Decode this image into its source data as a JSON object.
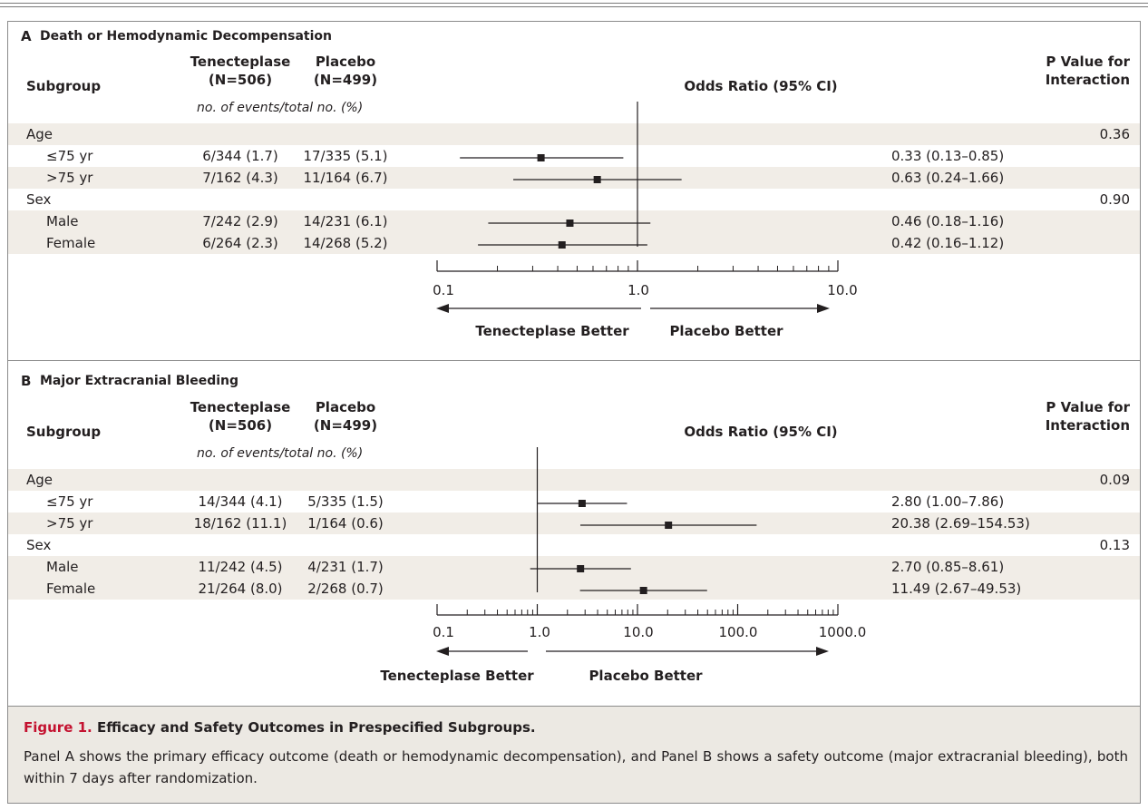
{
  "headers": {
    "subgroup": "Subgroup",
    "tnk_line1": "Tenecteplase",
    "tnk_line2": "(N=506)",
    "pbo_line1": "Placebo",
    "pbo_line2": "(N=499)",
    "or": "Odds Ratio (95% CI)",
    "p_line1": "P Value for",
    "p_line2": "Interaction",
    "units": "no. of events/total no. (%)"
  },
  "panels": [
    {
      "letter": "A",
      "title": "Death or Hemodynamic Decompensation",
      "rows": [
        {
          "kind": "group",
          "label": "Age",
          "p": "0.36"
        },
        {
          "kind": "sub",
          "label": "≤75 yr",
          "tnk": "6/344 (1.7)",
          "pbo": "17/335 (5.1)",
          "ci_text": "0.33 (0.13–0.85)"
        },
        {
          "kind": "sub",
          "label": ">75 yr",
          "tnk": "7/162 (4.3)",
          "pbo": "11/164 (6.7)",
          "ci_text": "0.63 (0.24–1.66)"
        },
        {
          "kind": "group",
          "label": "Sex",
          "p": "0.90"
        },
        {
          "kind": "sub",
          "label": "Male",
          "tnk": "7/242 (2.9)",
          "pbo": "14/231 (6.1)",
          "ci_text": "0.46 (0.18–1.16)"
        },
        {
          "kind": "sub",
          "label": "Female",
          "tnk": "6/264 (2.3)",
          "pbo": "14/268 (5.2)",
          "ci_text": "0.42 (0.16–1.12)"
        }
      ],
      "tick_labels": [
        "0.1",
        "1.0",
        "10.0"
      ],
      "arrow_left": "Tenecteplase Better",
      "arrow_right": "Placebo Better"
    },
    {
      "letter": "B",
      "title": "Major Extracranial Bleeding",
      "rows": [
        {
          "kind": "group",
          "label": "Age",
          "p": "0.09"
        },
        {
          "kind": "sub",
          "label": "≤75 yr",
          "tnk": "14/344 (4.1)",
          "pbo": "5/335 (1.5)",
          "ci_text": "2.80 (1.00–7.86)"
        },
        {
          "kind": "sub",
          "label": ">75 yr",
          "tnk": "18/162 (11.1)",
          "pbo": "1/164 (0.6)",
          "ci_text": "20.38 (2.69–154.53)"
        },
        {
          "kind": "group",
          "label": "Sex",
          "p": "0.13"
        },
        {
          "kind": "sub",
          "label": "Male",
          "tnk": "11/242 (4.5)",
          "pbo": "4/231 (1.7)",
          "ci_text": "2.70 (0.85–8.61)"
        },
        {
          "kind": "sub",
          "label": "Female",
          "tnk": "21/264 (8.0)",
          "pbo": "2/268 (0.7)",
          "ci_text": "11.49 (2.67–49.53)"
        }
      ],
      "tick_labels": [
        "0.1",
        "1.0",
        "10.0",
        "100.0",
        "1000.0"
      ],
      "arrow_left": "Tenecteplase Better",
      "arrow_right": "Placebo Better"
    }
  ],
  "caption": {
    "figure_label": "Figure 1.",
    "title": "Efficacy and Safety Outcomes in Prespecified Subgroups.",
    "text": "Panel A shows the primary efficacy outcome (death or hemodynamic decompensation), and Panel B shows a safety outcome (major extracranial bleeding), both within 7 days after randomization."
  },
  "colors": {
    "row_band": "#f1ede7",
    "caption_bg": "#ece9e3",
    "figure_label": "#c41230",
    "ink": "#231f20"
  },
  "chart_data": [
    {
      "type": "forest",
      "scale": "log",
      "xlim": [
        0.1,
        10.0
      ],
      "reference_line": 1.0,
      "categories": [
        "≤75 yr",
        ">75 yr",
        "Male",
        "Female"
      ],
      "estimates": [
        {
          "or": 0.33,
          "lo": 0.13,
          "hi": 0.85
        },
        {
          "or": 0.63,
          "lo": 0.24,
          "hi": 1.66
        },
        {
          "or": 0.46,
          "lo": 0.18,
          "hi": 1.16
        },
        {
          "or": 0.42,
          "lo": 0.16,
          "hi": 1.12
        }
      ]
    },
    {
      "type": "forest",
      "scale": "log",
      "xlim": [
        0.1,
        1000.0
      ],
      "reference_line": 1.0,
      "categories": [
        "≤75 yr",
        ">75 yr",
        "Male",
        "Female"
      ],
      "estimates": [
        {
          "or": 2.8,
          "lo": 1.0,
          "hi": 7.86
        },
        {
          "or": 20.38,
          "lo": 2.69,
          "hi": 154.53
        },
        {
          "or": 2.7,
          "lo": 0.85,
          "hi": 8.61
        },
        {
          "or": 11.49,
          "lo": 2.67,
          "hi": 49.53
        }
      ]
    }
  ]
}
